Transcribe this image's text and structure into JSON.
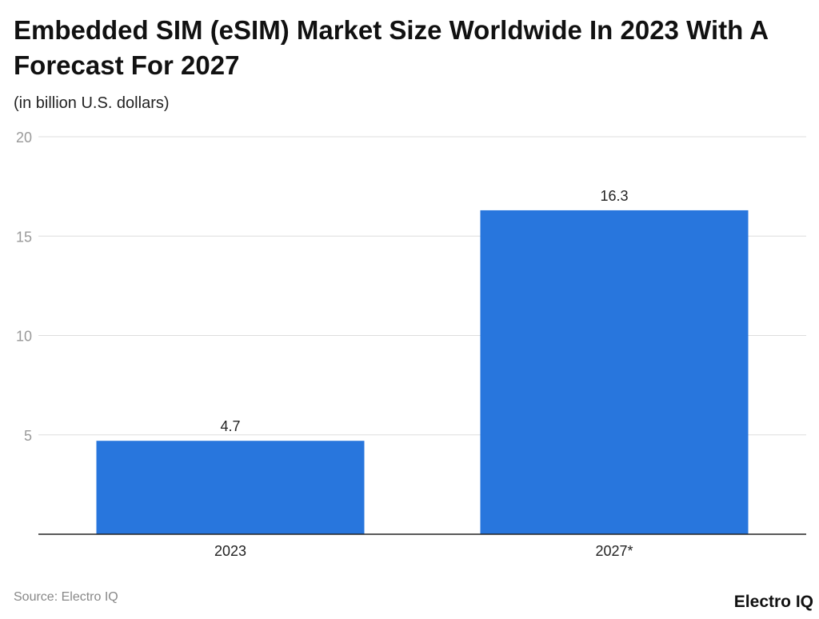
{
  "chart_data": {
    "type": "bar",
    "title": "Embedded SIM (eSIM) Market Size Worldwide In 2023 With A Forecast For 2027",
    "subtitle": "(in billion U.S. dollars)",
    "categories": [
      "2023",
      "2027*"
    ],
    "values": [
      4.7,
      16.3
    ],
    "data_labels": [
      "4.7",
      "16.3"
    ],
    "ylim": [
      0,
      20
    ],
    "yticks": [
      "5",
      "10",
      "15",
      "20"
    ],
    "grid": true,
    "bar_color": "#2876dd"
  },
  "source": "Source: Electro IQ",
  "logo": "Electro IQ"
}
